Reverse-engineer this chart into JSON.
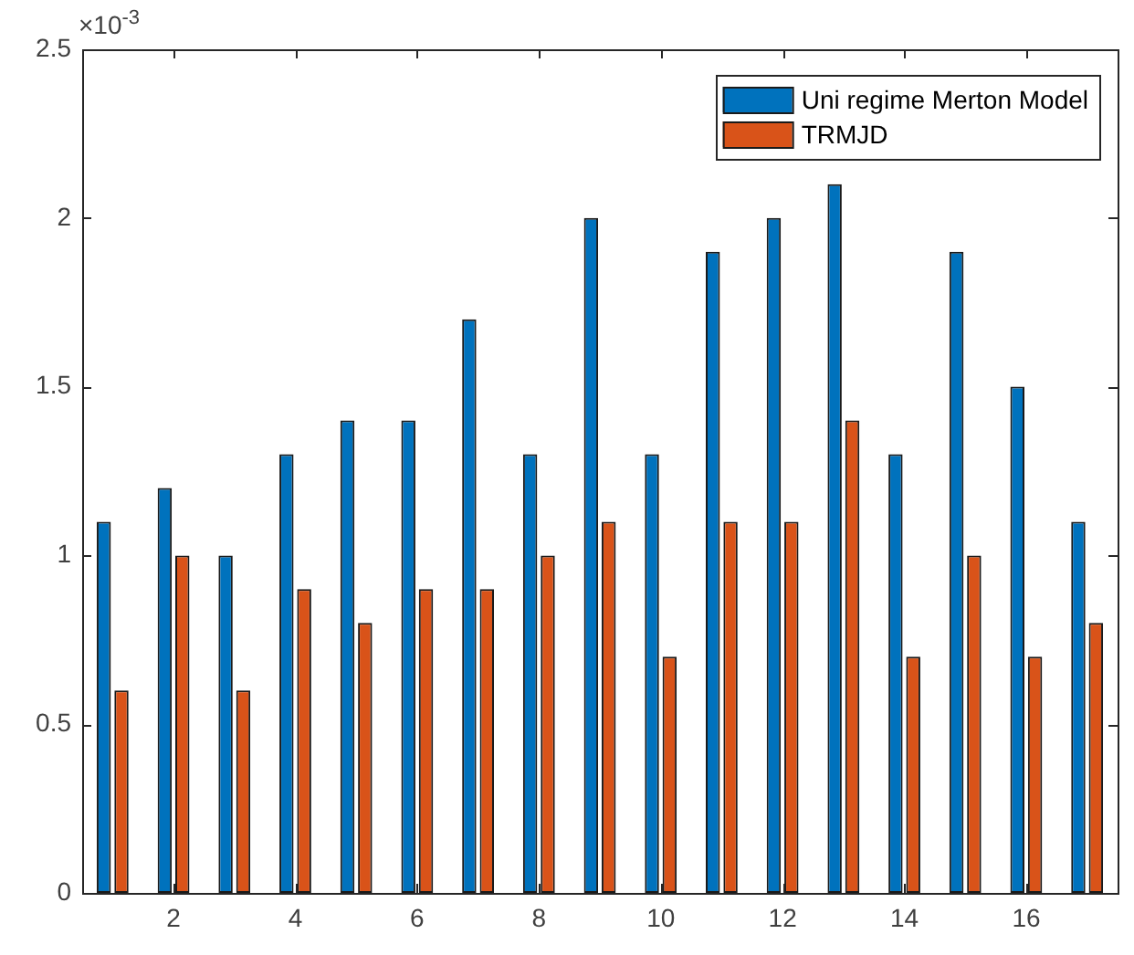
{
  "chart_data": {
    "type": "bar",
    "x": [
      1,
      2,
      3,
      4,
      5,
      6,
      7,
      8,
      9,
      10,
      11,
      12,
      13,
      14,
      15,
      16,
      17
    ],
    "series": [
      {
        "name": "Uni regime Merton Model",
        "color": "#0072bd",
        "values": [
          1.1,
          1.2,
          1.0,
          1.3,
          1.4,
          1.4,
          1.7,
          1.3,
          2.0,
          1.3,
          1.9,
          2.0,
          2.1,
          1.3,
          1.9,
          1.5,
          1.1
        ]
      },
      {
        "name": "TRMJD",
        "color": "#d95319",
        "values": [
          0.6,
          1.0,
          0.6,
          0.9,
          0.8,
          0.9,
          0.9,
          1.0,
          1.1,
          0.7,
          1.1,
          1.1,
          1.4,
          0.7,
          1.0,
          0.7,
          0.8
        ]
      }
    ],
    "xlim": [
      0.5,
      17.5
    ],
    "xticks": [
      2,
      4,
      6,
      8,
      10,
      12,
      14,
      16
    ],
    "ylim": [
      0,
      2.5
    ],
    "yticks": [
      0,
      0.5,
      1,
      1.5,
      2,
      2.5
    ],
    "legend": "top right",
    "annotations": [
      "×10$^{-3}$"
    ]
  }
}
